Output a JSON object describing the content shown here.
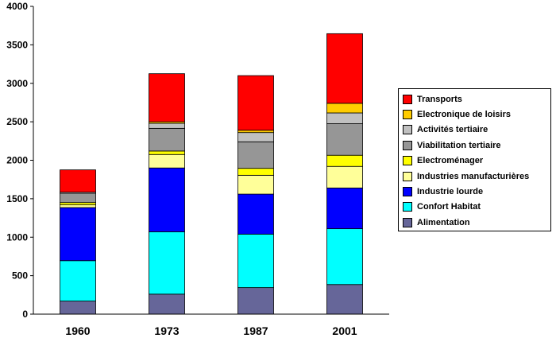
{
  "chart_data": {
    "type": "bar",
    "stacked": true,
    "title": "",
    "xlabel": "",
    "ylabel": "",
    "categories": [
      "1960",
      "1973",
      "1987",
      "2001"
    ],
    "ylim": [
      0,
      4000
    ],
    "yticks": [
      0,
      500,
      1000,
      1500,
      2000,
      2500,
      3000,
      3500,
      4000
    ],
    "grid": false,
    "legend_position": "right",
    "series": [
      {
        "name": "Alimentation",
        "color": "#666699",
        "values": [
          170,
          260,
          345,
          385
        ]
      },
      {
        "name": "Confort Habitat",
        "color": "#00ffff",
        "values": [
          525,
          810,
          695,
          725
        ]
      },
      {
        "name": "Industrie lourde",
        "color": "#0000ff",
        "values": [
          690,
          830,
          520,
          530
        ]
      },
      {
        "name": "Industries manufacturières",
        "color": "#ffff99",
        "values": [
          35,
          175,
          245,
          280
        ]
      },
      {
        "name": "Electroménager",
        "color": "#ffff00",
        "values": [
          30,
          45,
          90,
          145
        ]
      },
      {
        "name": "Viabilitation tertiaire",
        "color": "#969696",
        "values": [
          120,
          295,
          345,
          410
        ]
      },
      {
        "name": "Activités tertiaire",
        "color": "#c0c0c0",
        "values": [
          15,
          65,
          120,
          140
        ]
      },
      {
        "name": "Electronique de loisirs",
        "color": "#ffcc00",
        "values": [
          0,
          20,
          30,
          125
        ]
      },
      {
        "name": "Transports",
        "color": "#ff0000",
        "values": [
          290,
          625,
          710,
          905
        ]
      }
    ]
  }
}
